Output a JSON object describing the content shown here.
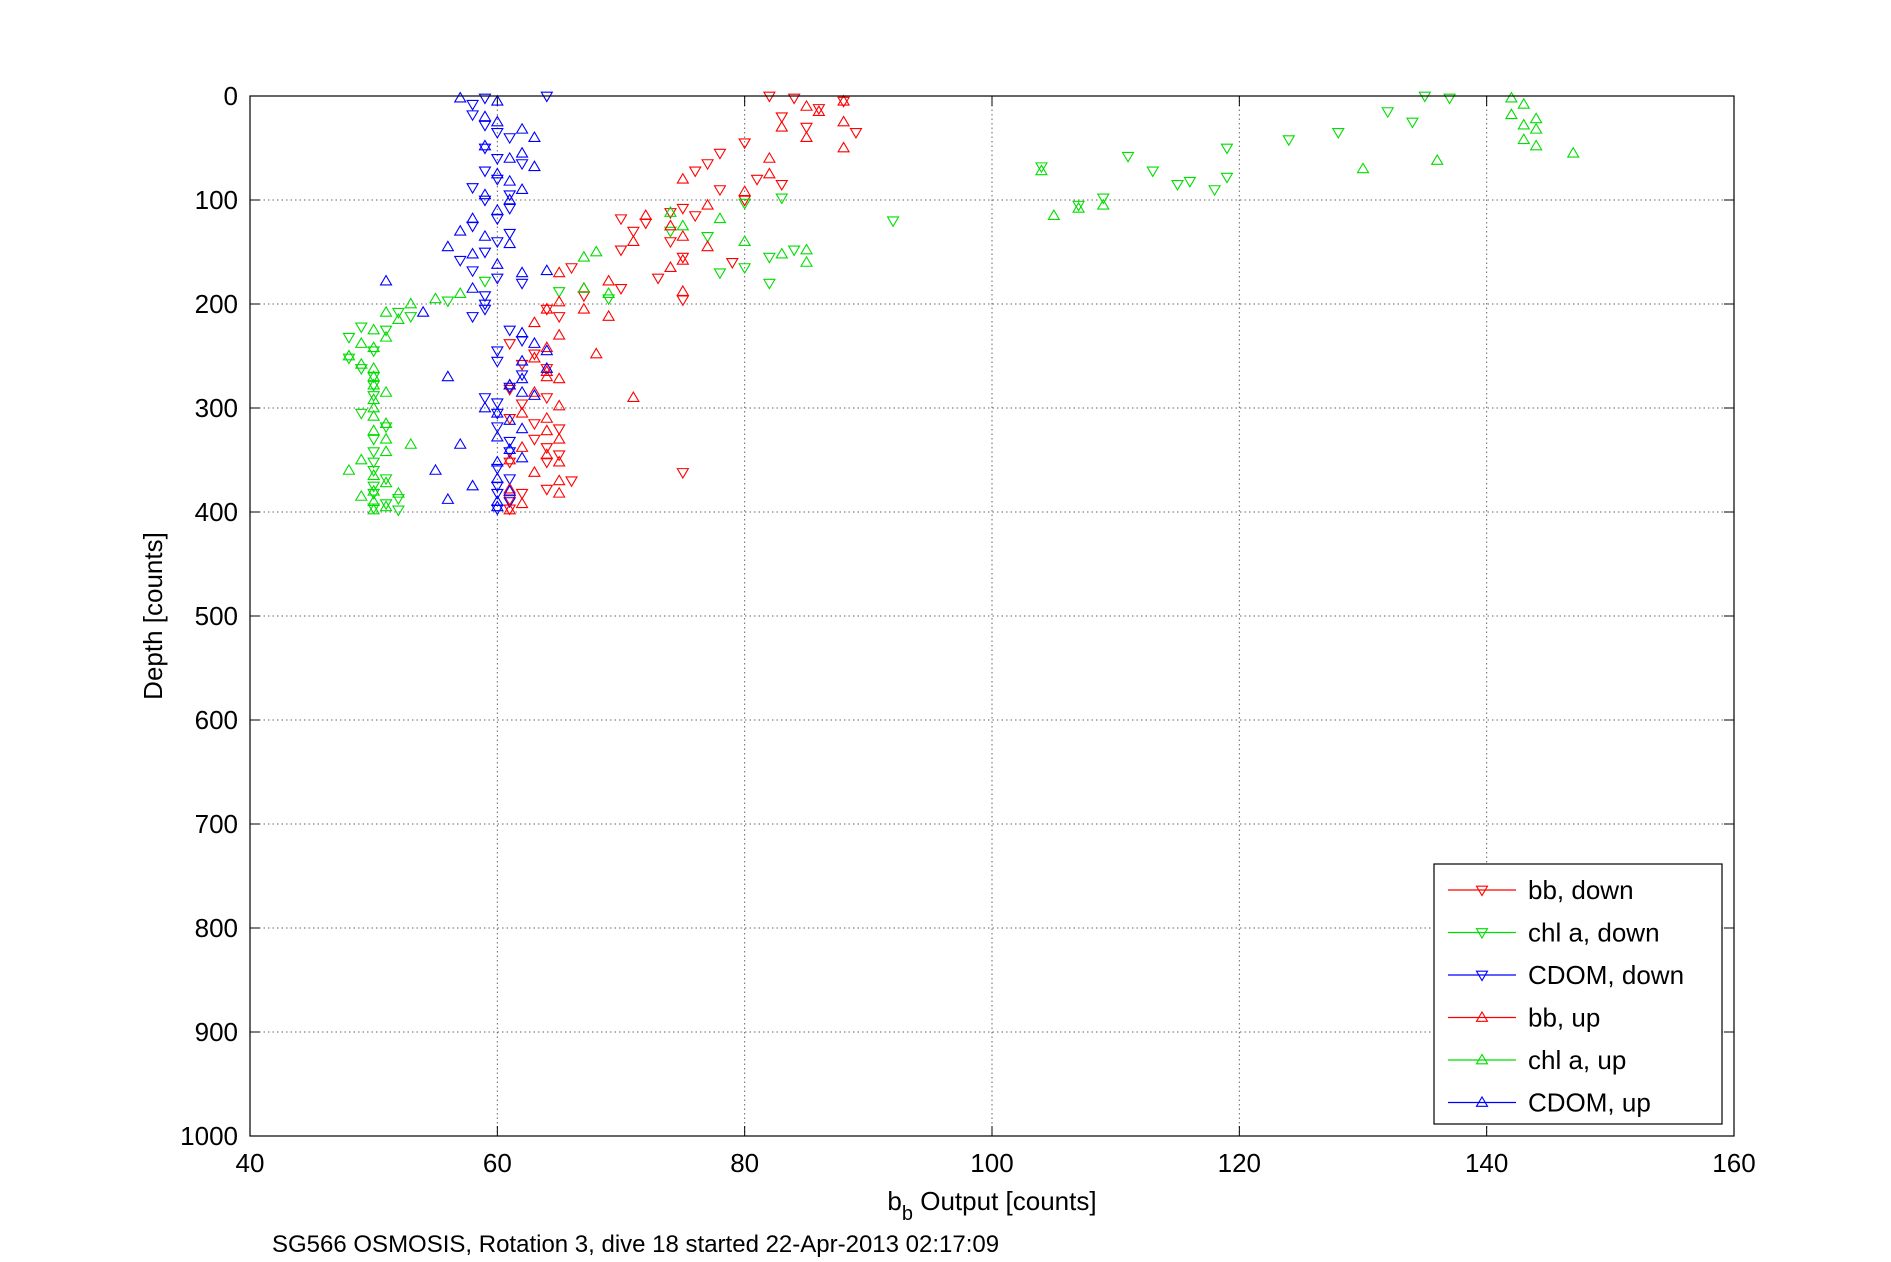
{
  "chart_data": {
    "type": "scatter",
    "xlabel": {
      "main": "b",
      "sub": "b",
      "rest": " Output [counts]"
    },
    "ylabel": "Depth [counts]",
    "footer": "SG566 OSMOSIS, Rotation 3, dive 18 started 22-Apr-2013 02:17:09",
    "xlim": [
      40,
      160
    ],
    "ylim": [
      0,
      1000
    ],
    "y_reversed": true,
    "grid": true,
    "x_ticks": [
      "40",
      "60",
      "80",
      "100",
      "120",
      "140",
      "160"
    ],
    "y_ticks": [
      "0",
      "100",
      "200",
      "300",
      "400",
      "500",
      "600",
      "700",
      "800",
      "900",
      "1000"
    ],
    "legend_position": "bottom-right",
    "series": [
      {
        "name": "bb, down",
        "color": "#ff0000",
        "marker": "triangle-down",
        "points": [
          [
            82,
            0
          ],
          [
            84,
            2
          ],
          [
            88,
            5
          ],
          [
            86,
            12
          ],
          [
            83,
            20
          ],
          [
            85,
            30
          ],
          [
            89,
            35
          ],
          [
            80,
            45
          ],
          [
            78,
            55
          ],
          [
            77,
            65
          ],
          [
            76,
            72
          ],
          [
            81,
            80
          ],
          [
            83,
            85
          ],
          [
            78,
            90
          ],
          [
            80,
            100
          ],
          [
            75,
            108
          ],
          [
            74,
            112
          ],
          [
            76,
            115
          ],
          [
            70,
            118
          ],
          [
            72,
            122
          ],
          [
            71,
            130
          ],
          [
            74,
            140
          ],
          [
            70,
            148
          ],
          [
            75,
            155
          ],
          [
            79,
            160
          ],
          [
            66,
            165
          ],
          [
            73,
            175
          ],
          [
            70,
            185
          ],
          [
            67,
            192
          ],
          [
            75,
            196
          ],
          [
            64,
            205
          ],
          [
            65,
            212
          ],
          [
            61,
            238
          ],
          [
            63,
            248
          ],
          [
            62,
            258
          ],
          [
            64,
            262
          ],
          [
            61,
            282
          ],
          [
            64,
            290
          ],
          [
            62,
            296
          ],
          [
            61,
            310
          ],
          [
            63,
            315
          ],
          [
            65,
            320
          ],
          [
            63,
            330
          ],
          [
            64,
            338
          ],
          [
            65,
            345
          ],
          [
            61,
            352
          ],
          [
            64,
            352
          ],
          [
            75,
            362
          ],
          [
            66,
            370
          ],
          [
            64,
            378
          ],
          [
            62,
            382
          ],
          [
            61,
            388
          ],
          [
            61,
            397
          ]
        ]
      },
      {
        "name": "chl a, down",
        "color": "#00dd00",
        "marker": "triangle-down",
        "points": [
          [
            135,
            0
          ],
          [
            137,
            2
          ],
          [
            132,
            15
          ],
          [
            134,
            25
          ],
          [
            128,
            35
          ],
          [
            124,
            42
          ],
          [
            119,
            50
          ],
          [
            111,
            58
          ],
          [
            104,
            68
          ],
          [
            113,
            72
          ],
          [
            116,
            82
          ],
          [
            119,
            78
          ],
          [
            115,
            85
          ],
          [
            118,
            90
          ],
          [
            109,
            98
          ],
          [
            107,
            105
          ],
          [
            83,
            98
          ],
          [
            80,
            103
          ],
          [
            92,
            120
          ],
          [
            74,
            130
          ],
          [
            77,
            135
          ],
          [
            84,
            148
          ],
          [
            82,
            155
          ],
          [
            80,
            165
          ],
          [
            78,
            170
          ],
          [
            82,
            180
          ],
          [
            59,
            178
          ],
          [
            65,
            188
          ],
          [
            69,
            195
          ],
          [
            56,
            197
          ],
          [
            52,
            208
          ],
          [
            53,
            212
          ],
          [
            49,
            222
          ],
          [
            51,
            225
          ],
          [
            48,
            232
          ],
          [
            50,
            245
          ],
          [
            48,
            252
          ],
          [
            49,
            262
          ],
          [
            50,
            270
          ],
          [
            50,
            278
          ],
          [
            50,
            288
          ],
          [
            49,
            305
          ],
          [
            51,
            318
          ],
          [
            50,
            330
          ],
          [
            50,
            342
          ],
          [
            50,
            352
          ],
          [
            50,
            360
          ],
          [
            51,
            368
          ],
          [
            50,
            375
          ],
          [
            50,
            382
          ],
          [
            52,
            387
          ],
          [
            51,
            392
          ],
          [
            50,
            396
          ],
          [
            52,
            398
          ]
        ]
      },
      {
        "name": "CDOM, down",
        "color": "#0000ff",
        "marker": "triangle-down",
        "points": [
          [
            64,
            0
          ],
          [
            59,
            2
          ],
          [
            58,
            8
          ],
          [
            58,
            18
          ],
          [
            59,
            28
          ],
          [
            60,
            35
          ],
          [
            61,
            40
          ],
          [
            59,
            50
          ],
          [
            60,
            60
          ],
          [
            62,
            65
          ],
          [
            59,
            72
          ],
          [
            60,
            80
          ],
          [
            58,
            88
          ],
          [
            61,
            95
          ],
          [
            59,
            100
          ],
          [
            61,
            108
          ],
          [
            60,
            118
          ],
          [
            58,
            125
          ],
          [
            61,
            132
          ],
          [
            60,
            140
          ],
          [
            59,
            150
          ],
          [
            57,
            158
          ],
          [
            58,
            168
          ],
          [
            60,
            175
          ],
          [
            62,
            180
          ],
          [
            59,
            192
          ],
          [
            59,
            200
          ],
          [
            59,
            205
          ],
          [
            58,
            212
          ],
          [
            61,
            225
          ],
          [
            62,
            235
          ],
          [
            60,
            245
          ],
          [
            60,
            255
          ],
          [
            62,
            268
          ],
          [
            61,
            280
          ],
          [
            59,
            290
          ],
          [
            60,
            295
          ],
          [
            60,
            305
          ],
          [
            60,
            318
          ],
          [
            61,
            332
          ],
          [
            61,
            342
          ],
          [
            60,
            358
          ],
          [
            61,
            368
          ],
          [
            60,
            375
          ],
          [
            60,
            382
          ],
          [
            61,
            390
          ],
          [
            60,
            397
          ]
        ]
      },
      {
        "name": "bb, up",
        "color": "#ff0000",
        "marker": "triangle-up",
        "points": [
          [
            88,
            5
          ],
          [
            85,
            10
          ],
          [
            86,
            15
          ],
          [
            88,
            25
          ],
          [
            83,
            30
          ],
          [
            85,
            40
          ],
          [
            88,
            50
          ],
          [
            82,
            60
          ],
          [
            82,
            75
          ],
          [
            75,
            80
          ],
          [
            80,
            92
          ],
          [
            77,
            105
          ],
          [
            72,
            115
          ],
          [
            74,
            125
          ],
          [
            75,
            135
          ],
          [
            71,
            140
          ],
          [
            77,
            145
          ],
          [
            75,
            158
          ],
          [
            74,
            165
          ],
          [
            65,
            170
          ],
          [
            69,
            178
          ],
          [
            67,
            185
          ],
          [
            75,
            188
          ],
          [
            65,
            198
          ],
          [
            64,
            205
          ],
          [
            67,
            205
          ],
          [
            69,
            212
          ],
          [
            63,
            218
          ],
          [
            65,
            230
          ],
          [
            64,
            242
          ],
          [
            68,
            248
          ],
          [
            63,
            252
          ],
          [
            64,
            265
          ],
          [
            64,
            270
          ],
          [
            65,
            272
          ],
          [
            61,
            278
          ],
          [
            63,
            285
          ],
          [
            71,
            290
          ],
          [
            65,
            298
          ],
          [
            62,
            305
          ],
          [
            64,
            310
          ],
          [
            64,
            322
          ],
          [
            65,
            330
          ],
          [
            62,
            338
          ],
          [
            64,
            345
          ],
          [
            61,
            350
          ],
          [
            65,
            352
          ],
          [
            63,
            362
          ],
          [
            65,
            370
          ],
          [
            61,
            378
          ],
          [
            65,
            382
          ],
          [
            62,
            392
          ],
          [
            61,
            398
          ]
        ]
      },
      {
        "name": "chl a, up",
        "color": "#00dd00",
        "marker": "triangle-up",
        "points": [
          [
            142,
            2
          ],
          [
            143,
            8
          ],
          [
            142,
            18
          ],
          [
            144,
            22
          ],
          [
            143,
            28
          ],
          [
            144,
            32
          ],
          [
            143,
            42
          ],
          [
            144,
            48
          ],
          [
            147,
            55
          ],
          [
            136,
            62
          ],
          [
            130,
            70
          ],
          [
            104,
            72
          ],
          [
            105,
            115
          ],
          [
            107,
            108
          ],
          [
            109,
            105
          ],
          [
            85,
            148
          ],
          [
            83,
            152
          ],
          [
            85,
            160
          ],
          [
            68,
            150
          ],
          [
            67,
            155
          ],
          [
            80,
            140
          ],
          [
            75,
            125
          ],
          [
            78,
            118
          ],
          [
            74,
            112
          ],
          [
            67,
            185
          ],
          [
            69,
            190
          ],
          [
            57,
            190
          ],
          [
            55,
            195
          ],
          [
            53,
            200
          ],
          [
            51,
            208
          ],
          [
            52,
            215
          ],
          [
            50,
            225
          ],
          [
            51,
            232
          ],
          [
            49,
            238
          ],
          [
            50,
            242
          ],
          [
            48,
            250
          ],
          [
            49,
            258
          ],
          [
            50,
            262
          ],
          [
            50,
            270
          ],
          [
            50,
            278
          ],
          [
            51,
            285
          ],
          [
            50,
            292
          ],
          [
            50,
            300
          ],
          [
            50,
            308
          ],
          [
            51,
            315
          ],
          [
            50,
            322
          ],
          [
            51,
            330
          ],
          [
            53,
            335
          ],
          [
            51,
            342
          ],
          [
            49,
            350
          ],
          [
            48,
            360
          ],
          [
            50,
            365
          ],
          [
            51,
            372
          ],
          [
            50,
            380
          ],
          [
            49,
            385
          ],
          [
            50,
            390
          ],
          [
            51,
            395
          ],
          [
            50,
            398
          ],
          [
            52,
            382
          ]
        ]
      },
      {
        "name": "CDOM, up",
        "color": "#0000ff",
        "marker": "triangle-up",
        "points": [
          [
            57,
            2
          ],
          [
            60,
            5
          ],
          [
            59,
            20
          ],
          [
            60,
            25
          ],
          [
            62,
            32
          ],
          [
            63,
            40
          ],
          [
            59,
            48
          ],
          [
            62,
            55
          ],
          [
            61,
            60
          ],
          [
            63,
            68
          ],
          [
            60,
            75
          ],
          [
            61,
            82
          ],
          [
            62,
            90
          ],
          [
            59,
            95
          ],
          [
            61,
            100
          ],
          [
            60,
            110
          ],
          [
            58,
            118
          ],
          [
            57,
            130
          ],
          [
            59,
            135
          ],
          [
            61,
            142
          ],
          [
            56,
            145
          ],
          [
            58,
            152
          ],
          [
            60,
            162
          ],
          [
            62,
            170
          ],
          [
            64,
            168
          ],
          [
            51,
            178
          ],
          [
            58,
            185
          ],
          [
            54,
            208
          ],
          [
            62,
            228
          ],
          [
            63,
            238
          ],
          [
            64,
            245
          ],
          [
            62,
            255
          ],
          [
            64,
            262
          ],
          [
            62,
            272
          ],
          [
            56,
            270
          ],
          [
            61,
            278
          ],
          [
            62,
            285
          ],
          [
            63,
            288
          ],
          [
            59,
            300
          ],
          [
            60,
            305
          ],
          [
            61,
            312
          ],
          [
            62,
            320
          ],
          [
            60,
            328
          ],
          [
            57,
            335
          ],
          [
            61,
            340
          ],
          [
            62,
            348
          ],
          [
            60,
            352
          ],
          [
            55,
            360
          ],
          [
            60,
            368
          ],
          [
            58,
            375
          ],
          [
            61,
            380
          ],
          [
            60,
            390
          ],
          [
            56,
            388
          ],
          [
            60,
            395
          ]
        ]
      }
    ]
  }
}
